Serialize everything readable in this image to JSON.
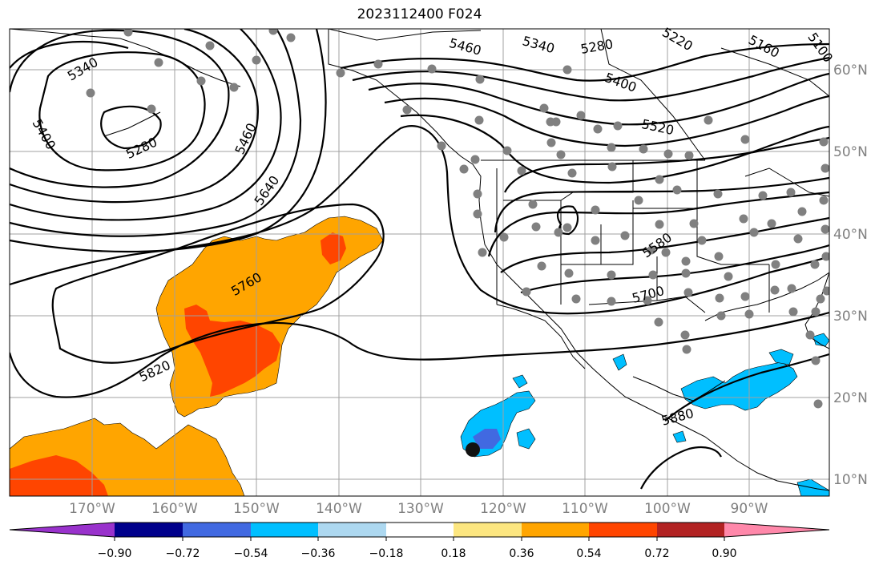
{
  "title": "2023112400 F024",
  "map": {
    "lon_ticks": [
      "170°W",
      "160°W",
      "150°W",
      "140°W",
      "130°W",
      "120°W",
      "110°W",
      "100°W",
      "90°W"
    ],
    "lat_ticks": [
      "60°N",
      "50°N",
      "40°N",
      "30°N",
      "20°N",
      "10°N"
    ],
    "contour_labels": [
      "5340",
      "5280",
      "5400",
      "5460",
      "5640",
      "5760",
      "5820",
      "5460",
      "5340",
      "5280",
      "5220",
      "5160",
      "5100",
      "5400",
      "5520",
      "5580",
      "5700",
      "5880"
    ],
    "colors": {
      "contour": "#000000",
      "gridlines": "#a0a0a0",
      "coastline": "#000000",
      "station_dot": "#808080",
      "marker": "#111111"
    }
  },
  "colorbar": {
    "tick_labels": [
      "−0.90",
      "−0.72",
      "−0.54",
      "−0.36",
      "−0.18",
      "0.18",
      "0.36",
      "0.54",
      "0.72",
      "0.90"
    ],
    "colors": [
      "#9932cc",
      "#00008b",
      "#4169e1",
      "#00bfff",
      "#add8f0",
      "#ffffff",
      "#fce680",
      "#ffa500",
      "#ff4500",
      "#b22222",
      "#ff88aa"
    ]
  }
}
